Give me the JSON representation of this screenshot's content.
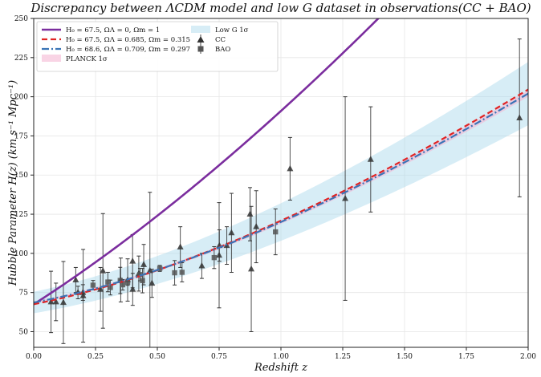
{
  "chart_data": {
    "type": "scatter",
    "title": "Discrepancy between ΛCDM model and low G dataset in observations(CC + BAO)",
    "xlabel": "Redshift z",
    "ylabel": "Hubble Parameter H(z) (km s⁻¹ Mpc⁻¹)",
    "xlim": [
      0,
      2.0
    ],
    "ylim": [
      40,
      250
    ],
    "xticks": [
      "0.00",
      "0.25",
      "0.50",
      "0.75",
      "1.00",
      "1.25",
      "1.50",
      "1.75",
      "2.00"
    ],
    "yticks": [
      "50",
      "75",
      "100",
      "125",
      "150",
      "175",
      "200",
      "225",
      "250"
    ],
    "grid": true,
    "legend_position": "top-left",
    "models": [
      {
        "name": "H₀ = 67.5, ΩΛ = 0, Ωm = 1",
        "H0": 67.5,
        "Om": 1.0,
        "OL": 0.0,
        "color": "#7b2d9e",
        "style": "solid"
      },
      {
        "name": "H₀ = 67.5, ΩΛ = 0.685, Ωm = 0.315",
        "H0": 67.5,
        "Om": 0.315,
        "OL": 0.685,
        "color": "#e02424",
        "style": "dashed"
      },
      {
        "name": "H₀ = 68.6, ΩΛ = 0.709, Ωm = 0.297",
        "H0": 68.6,
        "Om": 0.297,
        "OL": 0.709,
        "color": "#3a74b6",
        "style": "dashdot"
      }
    ],
    "bands": [
      {
        "name": "PLANCK 1σ",
        "color": "#f5b8d4",
        "opacity": 0.6,
        "low_factor": 0.99,
        "high_factor": 1.01
      },
      {
        "name": "Low G 1σ",
        "color": "#a6d8ec",
        "opacity": 0.45,
        "low_factor": 0.9,
        "high_factor": 1.1
      }
    ],
    "series": [
      {
        "name": "CC",
        "marker": "triangle",
        "color": "#333333",
        "points": [
          {
            "z": 0.07,
            "H": 69,
            "err": 19.6
          },
          {
            "z": 0.09,
            "H": 69,
            "err": 12
          },
          {
            "z": 0.12,
            "H": 68.6,
            "err": 26.2
          },
          {
            "z": 0.17,
            "H": 83,
            "err": 8
          },
          {
            "z": 0.179,
            "H": 75,
            "err": 4
          },
          {
            "z": 0.199,
            "H": 75,
            "err": 5
          },
          {
            "z": 0.2,
            "H": 72.9,
            "err": 29.6
          },
          {
            "z": 0.27,
            "H": 77,
            "err": 14
          },
          {
            "z": 0.28,
            "H": 88.8,
            "err": 36.6
          },
          {
            "z": 0.352,
            "H": 83,
            "err": 14
          },
          {
            "z": 0.38,
            "H": 83,
            "err": 13.5
          },
          {
            "z": 0.4,
            "H": 95,
            "err": 17
          },
          {
            "z": 0.4004,
            "H": 77,
            "err": 10.2
          },
          {
            "z": 0.425,
            "H": 87.1,
            "err": 11.2
          },
          {
            "z": 0.445,
            "H": 92.8,
            "err": 12.9
          },
          {
            "z": 0.47,
            "H": 89,
            "err": 50
          },
          {
            "z": 0.4783,
            "H": 80.9,
            "err": 9
          },
          {
            "z": 0.593,
            "H": 104,
            "err": 13
          },
          {
            "z": 0.68,
            "H": 92,
            "err": 8
          },
          {
            "z": 0.75,
            "H": 98.8,
            "err": 33.6
          },
          {
            "z": 0.751,
            "H": 105,
            "err": 10
          },
          {
            "z": 0.781,
            "H": 105,
            "err": 12
          },
          {
            "z": 0.8,
            "H": 113.1,
            "err": 25.22
          },
          {
            "z": 0.875,
            "H": 125,
            "err": 17
          },
          {
            "z": 0.88,
            "H": 90,
            "err": 40
          },
          {
            "z": 0.9,
            "H": 117,
            "err": 23
          },
          {
            "z": 1.037,
            "H": 154,
            "err": 20
          },
          {
            "z": 1.26,
            "H": 135,
            "err": 65
          },
          {
            "z": 1.363,
            "H": 160,
            "err": 33.6
          },
          {
            "z": 1.965,
            "H": 186.5,
            "err": 50.4
          }
        ]
      },
      {
        "name": "BAO",
        "marker": "square",
        "color": "#555555",
        "points": [
          {
            "z": 0.24,
            "H": 79.69,
            "err": 2.99
          },
          {
            "z": 0.3,
            "H": 81.7,
            "err": 6.22
          },
          {
            "z": 0.31,
            "H": 78.18,
            "err": 4.74
          },
          {
            "z": 0.35,
            "H": 82.7,
            "err": 8.4
          },
          {
            "z": 0.36,
            "H": 79.94,
            "err": 3.38
          },
          {
            "z": 0.38,
            "H": 81.5,
            "err": 1.9
          },
          {
            "z": 0.43,
            "H": 86.45,
            "err": 3.97
          },
          {
            "z": 0.44,
            "H": 82.6,
            "err": 7.8
          },
          {
            "z": 0.51,
            "H": 90.4,
            "err": 1.9
          },
          {
            "z": 0.57,
            "H": 87.6,
            "err": 7.8
          },
          {
            "z": 0.6,
            "H": 87.9,
            "err": 6.1
          },
          {
            "z": 0.73,
            "H": 97.3,
            "err": 7.0
          },
          {
            "z": 0.978,
            "H": 113.72,
            "err": 14.63
          }
        ]
      }
    ]
  }
}
